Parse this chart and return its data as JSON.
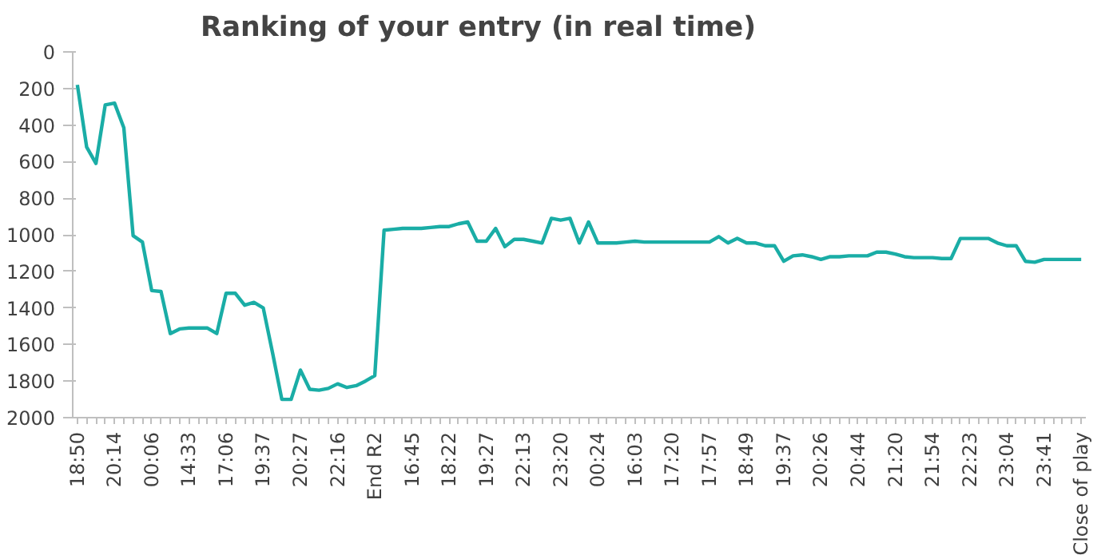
{
  "chart_data": {
    "type": "line",
    "title": "Ranking of your entry (in real time)",
    "categories": [
      "18:50",
      null,
      null,
      null,
      "20:14",
      null,
      null,
      null,
      "00:06",
      null,
      null,
      null,
      "14:33",
      null,
      null,
      null,
      "17:06",
      null,
      null,
      null,
      "19:37",
      null,
      null,
      null,
      "20:27",
      null,
      null,
      null,
      "22:16",
      null,
      null,
      null,
      "End R2",
      null,
      null,
      null,
      "16:45",
      null,
      null,
      null,
      "18:22",
      null,
      null,
      null,
      "19:27",
      null,
      null,
      null,
      "22:13",
      null,
      null,
      null,
      "23:20",
      null,
      null,
      null,
      "00:24",
      null,
      null,
      null,
      "16:03",
      null,
      null,
      null,
      "17:20",
      null,
      null,
      null,
      "17:57",
      null,
      null,
      null,
      "18:49",
      null,
      null,
      null,
      "19:37",
      null,
      null,
      null,
      "20:26",
      null,
      null,
      null,
      "20:44",
      null,
      null,
      null,
      "21:20",
      null,
      null,
      null,
      "21:54",
      null,
      null,
      null,
      "22:23",
      null,
      null,
      null,
      "23:04",
      null,
      null,
      null,
      "23:41",
      null,
      null,
      null,
      "Close of play"
    ],
    "series": [
      {
        "color": "#1aada6",
        "values": [
          180,
          520,
          610,
          290,
          280,
          415,
          1005,
          1040,
          1305,
          1310,
          1540,
          1515,
          1510,
          1510,
          1510,
          1540,
          1320,
          1320,
          1385,
          1370,
          1400,
          1645,
          1900,
          1900,
          1740,
          1845,
          1850,
          1840,
          1815,
          1835,
          1825,
          1800,
          1770,
          975,
          970,
          965,
          965,
          965,
          960,
          955,
          955,
          940,
          930,
          1035,
          1035,
          965,
          1065,
          1025,
          1025,
          1035,
          1045,
          910,
          920,
          910,
          1045,
          930,
          1045,
          1045,
          1045,
          1040,
          1035,
          1040,
          1040,
          1040,
          1040,
          1040,
          1040,
          1040,
          1040,
          1010,
          1045,
          1020,
          1045,
          1045,
          1060,
          1060,
          1145,
          1115,
          1110,
          1120,
          1135,
          1120,
          1120,
          1115,
          1115,
          1115,
          1095,
          1095,
          1105,
          1120,
          1125,
          1125,
          1125,
          1130,
          1130,
          1020,
          1020,
          1020,
          1020,
          1045,
          1060,
          1060,
          1145,
          1150,
          1135,
          1135,
          1135,
          1135,
          1135
        ]
      }
    ],
    "ylim": [
      2000,
      0
    ],
    "yticks": [
      0,
      200,
      400,
      600,
      800,
      1000,
      1200,
      1400,
      1600,
      1800,
      2000
    ],
    "grid": false,
    "marker": "none",
    "line_style": "solid"
  }
}
